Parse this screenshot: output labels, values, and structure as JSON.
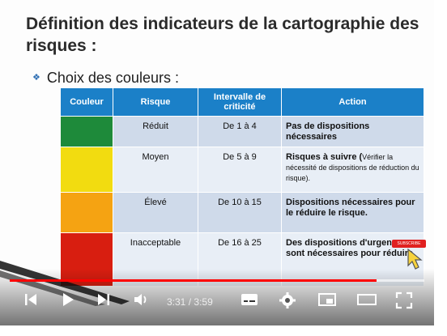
{
  "slide": {
    "title": "Définition des indicateurs de la cartographie des risques :",
    "bullet": "Choix des couleurs :"
  },
  "table": {
    "headers": [
      "Couleur",
      "Risque",
      "Intervalle de criticité",
      "Action"
    ],
    "rows": [
      {
        "color": "#1e8a3a",
        "risk": "Réduit",
        "interval": "De 1 à 4",
        "action": "Pas de dispositions nécessaires",
        "note": ""
      },
      {
        "color": "#f2dc10",
        "risk": "Moyen",
        "interval": "De 5 à 9",
        "action": "Risques à suivre (",
        "note": "Vérifier la nécessité de dispositions de réduction du risque)."
      },
      {
        "color": "#f5a312",
        "risk": "Élevé",
        "interval": "De 10 à 15",
        "action": "Dispositions nécessaires pour le réduire le risque.",
        "note": ""
      },
      {
        "color": "#d81e10",
        "risk": "Inacceptable",
        "interval": "De 16 à 25",
        "action": "Des dispositions d'urgence sont nécessaires pour réduire",
        "note": ""
      }
    ]
  },
  "overlay": {
    "subscribe_label": "SUBSCRIBE"
  },
  "player": {
    "current_time": "3:31",
    "separator": "/",
    "duration": "3:59",
    "played_fraction": 0.884,
    "buffered_fraction": 1.0,
    "accent_color": "#ff0000"
  },
  "icons": [
    "previous-icon",
    "play-icon",
    "next-icon",
    "volume-icon",
    "subtitles-icon",
    "settings-icon",
    "miniplayer-icon",
    "theater-icon",
    "fullscreen-icon"
  ]
}
